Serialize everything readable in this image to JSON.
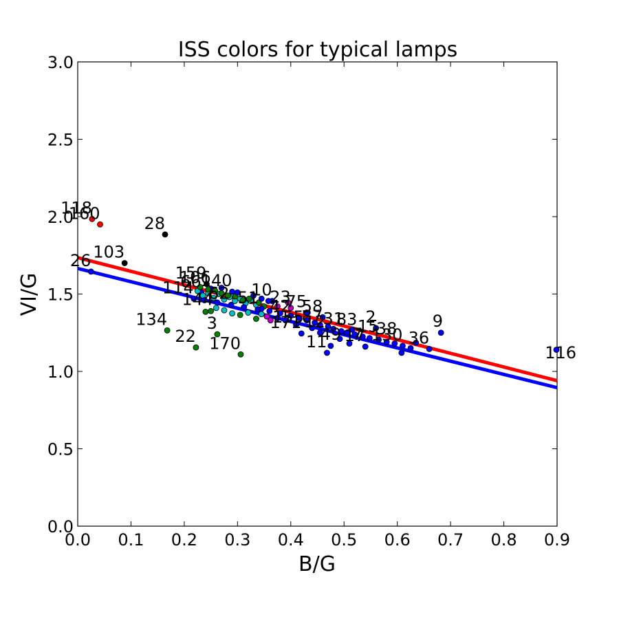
{
  "chart_data": {
    "type": "scatter",
    "title": "ISS colors for typical lamps",
    "xlabel": "B/G",
    "ylabel": "VI/G",
    "xlim": [
      0.0,
      0.9
    ],
    "ylim": [
      0.0,
      3.0
    ],
    "xticks": [
      "0.0",
      "0.1",
      "0.2",
      "0.3",
      "0.4",
      "0.5",
      "0.6",
      "0.7",
      "0.8",
      "0.9"
    ],
    "yticks": [
      "0.0",
      "0.5",
      "1.0",
      "1.5",
      "2.0",
      "2.5",
      "3.0"
    ],
    "grid": false,
    "colors": {
      "red": "#ff0000",
      "black": "#000000",
      "blue": "#0000ff",
      "green": "#007f00",
      "cyan": "#00bfbf",
      "magenta": "#bf00bf",
      "fit_red": "#ff0000",
      "fit_blue": "#0000ff"
    },
    "fit_lines": [
      {
        "color": "blue",
        "x": [
          0.0,
          0.9
        ],
        "y": [
          1.665,
          0.895
        ]
      },
      {
        "color": "red",
        "x": [
          0.0,
          0.9
        ],
        "y": [
          1.735,
          0.94
        ]
      }
    ],
    "points": [
      {
        "x": 0.027,
        "y": 1.985,
        "color": "red",
        "label": "118"
      },
      {
        "x": 0.042,
        "y": 1.95,
        "color": "red",
        "label": "160"
      },
      {
        "x": 0.164,
        "y": 1.885,
        "color": "black",
        "label": "28"
      },
      {
        "x": 0.088,
        "y": 1.7,
        "color": "black",
        "label": "103"
      },
      {
        "x": 0.025,
        "y": 1.645,
        "color": "blue",
        "label": "26"
      },
      {
        "x": 0.168,
        "y": 1.265,
        "color": "green",
        "label": "134"
      },
      {
        "x": 0.222,
        "y": 1.155,
        "color": "green",
        "label": "22"
      },
      {
        "x": 0.262,
        "y": 1.24,
        "color": "green",
        "label": "3"
      },
      {
        "x": 0.306,
        "y": 1.11,
        "color": "green",
        "label": "170"
      },
      {
        "x": 0.242,
        "y": 1.565,
        "color": "black",
        "label": "159"
      },
      {
        "x": 0.25,
        "y": 1.535,
        "color": "blue",
        "label": "106"
      },
      {
        "x": 0.232,
        "y": 1.51,
        "color": "blue",
        "label": "66"
      },
      {
        "x": 0.218,
        "y": 1.47,
        "color": "blue",
        "label": "114"
      },
      {
        "x": 0.29,
        "y": 1.515,
        "color": "blue",
        "label": "140"
      },
      {
        "x": 0.365,
        "y": 1.455,
        "color": "blue",
        "label": "10"
      },
      {
        "x": 0.4,
        "y": 1.41,
        "color": "magenta",
        "label": "23"
      },
      {
        "x": 0.43,
        "y": 1.38,
        "color": "blue",
        "label": "75"
      },
      {
        "x": 0.46,
        "y": 1.35,
        "color": "blue",
        "label": "58"
      },
      {
        "x": 0.42,
        "y": 1.245,
        "color": "blue",
        "label": "171"
      },
      {
        "x": 0.468,
        "y": 1.12,
        "color": "blue",
        "label": "11"
      },
      {
        "x": 0.54,
        "y": 1.16,
        "color": "blue",
        "label": "17"
      },
      {
        "x": 0.56,
        "y": 1.28,
        "color": "blue",
        "label": "2"
      },
      {
        "x": 0.61,
        "y": 1.165,
        "color": "blue",
        "label": "130"
      },
      {
        "x": 0.66,
        "y": 1.145,
        "color": "blue",
        "label": "36"
      },
      {
        "x": 0.682,
        "y": 1.25,
        "color": "blue",
        "label": "9"
      },
      {
        "x": 0.904,
        "y": 1.14,
        "color": "blue",
        "label": "116"
      },
      {
        "x": 0.24,
        "y": 1.385,
        "color": "green",
        "label": ""
      },
      {
        "x": 0.25,
        "y": 1.39,
        "color": "green",
        "label": ""
      },
      {
        "x": 0.26,
        "y": 1.41,
        "color": "cyan",
        "label": ""
      },
      {
        "x": 0.275,
        "y": 1.395,
        "color": "cyan",
        "label": ""
      },
      {
        "x": 0.29,
        "y": 1.375,
        "color": "cyan",
        "label": ""
      },
      {
        "x": 0.305,
        "y": 1.365,
        "color": "green",
        "label": ""
      },
      {
        "x": 0.32,
        "y": 1.38,
        "color": "cyan",
        "label": ""
      },
      {
        "x": 0.335,
        "y": 1.34,
        "color": "green",
        "label": ""
      },
      {
        "x": 0.345,
        "y": 1.37,
        "color": "cyan",
        "label": ""
      },
      {
        "x": 0.355,
        "y": 1.355,
        "color": "magenta",
        "label": ""
      },
      {
        "x": 0.362,
        "y": 1.33,
        "color": "magenta",
        "label": ""
      },
      {
        "x": 0.375,
        "y": 1.345,
        "color": "blue",
        "label": ""
      },
      {
        "x": 0.39,
        "y": 1.33,
        "color": "blue",
        "label": ""
      },
      {
        "x": 0.225,
        "y": 1.52,
        "color": "cyan",
        "label": ""
      },
      {
        "x": 0.235,
        "y": 1.49,
        "color": "cyan",
        "label": ""
      },
      {
        "x": 0.245,
        "y": 1.505,
        "color": "cyan",
        "label": ""
      },
      {
        "x": 0.255,
        "y": 1.475,
        "color": "cyan",
        "label": ""
      },
      {
        "x": 0.265,
        "y": 1.5,
        "color": "cyan",
        "label": ""
      },
      {
        "x": 0.275,
        "y": 1.465,
        "color": "cyan",
        "label": ""
      },
      {
        "x": 0.285,
        "y": 1.48,
        "color": "cyan",
        "label": ""
      },
      {
        "x": 0.295,
        "y": 1.455,
        "color": "cyan",
        "label": ""
      },
      {
        "x": 0.305,
        "y": 1.47,
        "color": "cyan",
        "label": ""
      },
      {
        "x": 0.315,
        "y": 1.44,
        "color": "cyan",
        "label": ""
      },
      {
        "x": 0.325,
        "y": 1.455,
        "color": "cyan",
        "label": ""
      },
      {
        "x": 0.335,
        "y": 1.43,
        "color": "cyan",
        "label": ""
      },
      {
        "x": 0.23,
        "y": 1.545,
        "color": "green",
        "label": ""
      },
      {
        "x": 0.245,
        "y": 1.53,
        "color": "green",
        "label": ""
      },
      {
        "x": 0.258,
        "y": 1.52,
        "color": "green",
        "label": ""
      },
      {
        "x": 0.27,
        "y": 1.505,
        "color": "green",
        "label": ""
      },
      {
        "x": 0.282,
        "y": 1.49,
        "color": "green",
        "label": ""
      },
      {
        "x": 0.296,
        "y": 1.485,
        "color": "green",
        "label": ""
      },
      {
        "x": 0.31,
        "y": 1.46,
        "color": "green",
        "label": ""
      },
      {
        "x": 0.322,
        "y": 1.47,
        "color": "green",
        "label": ""
      },
      {
        "x": 0.34,
        "y": 1.445,
        "color": "green",
        "label": ""
      },
      {
        "x": 0.35,
        "y": 1.42,
        "color": "green",
        "label": ""
      },
      {
        "x": 0.238,
        "y": 1.46,
        "color": "blue",
        "label": ""
      },
      {
        "x": 0.262,
        "y": 1.445,
        "color": "blue",
        "label": ""
      },
      {
        "x": 0.288,
        "y": 1.43,
        "color": "blue",
        "label": ""
      },
      {
        "x": 0.312,
        "y": 1.415,
        "color": "blue",
        "label": ""
      },
      {
        "x": 0.338,
        "y": 1.4,
        "color": "blue",
        "label": ""
      },
      {
        "x": 0.36,
        "y": 1.39,
        "color": "blue",
        "label": ""
      },
      {
        "x": 0.38,
        "y": 1.375,
        "color": "blue",
        "label": ""
      },
      {
        "x": 0.4,
        "y": 1.36,
        "color": "blue",
        "label": ""
      },
      {
        "x": 0.415,
        "y": 1.345,
        "color": "blue",
        "label": ""
      },
      {
        "x": 0.43,
        "y": 1.33,
        "color": "blue",
        "label": ""
      },
      {
        "x": 0.445,
        "y": 1.315,
        "color": "blue",
        "label": ""
      },
      {
        "x": 0.455,
        "y": 1.3,
        "color": "blue",
        "label": ""
      },
      {
        "x": 0.47,
        "y": 1.29,
        "color": "blue",
        "label": ""
      },
      {
        "x": 0.48,
        "y": 1.275,
        "color": "blue",
        "label": ""
      },
      {
        "x": 0.495,
        "y": 1.26,
        "color": "blue",
        "label": ""
      },
      {
        "x": 0.505,
        "y": 1.25,
        "color": "blue",
        "label": ""
      },
      {
        "x": 0.52,
        "y": 1.24,
        "color": "blue",
        "label": ""
      },
      {
        "x": 0.535,
        "y": 1.225,
        "color": "blue",
        "label": ""
      },
      {
        "x": 0.548,
        "y": 1.215,
        "color": "blue",
        "label": ""
      },
      {
        "x": 0.565,
        "y": 1.205,
        "color": "blue",
        "label": ""
      },
      {
        "x": 0.58,
        "y": 1.19,
        "color": "blue",
        "label": ""
      },
      {
        "x": 0.595,
        "y": 1.18,
        "color": "blue",
        "label": ""
      },
      {
        "x": 0.635,
        "y": 1.185,
        "color": "blue",
        "label": ""
      },
      {
        "x": 0.625,
        "y": 1.15,
        "color": "blue",
        "label": ""
      },
      {
        "x": 0.608,
        "y": 1.12,
        "color": "blue",
        "label": ""
      },
      {
        "x": 0.51,
        "y": 1.18,
        "color": "blue",
        "label": ""
      },
      {
        "x": 0.475,
        "y": 1.165,
        "color": "blue",
        "label": ""
      },
      {
        "x": 0.44,
        "y": 1.28,
        "color": "blue",
        "label": ""
      },
      {
        "x": 0.492,
        "y": 1.21,
        "color": "blue",
        "label": ""
      },
      {
        "x": 0.515,
        "y": 1.27,
        "color": "blue",
        "label": ""
      },
      {
        "x": 0.395,
        "y": 1.445,
        "color": "magenta",
        "label": ""
      },
      {
        "x": 0.375,
        "y": 1.42,
        "color": "magenta",
        "label": ""
      },
      {
        "x": 0.345,
        "y": 1.405,
        "color": "blue",
        "label": ""
      },
      {
        "x": 0.27,
        "y": 1.54,
        "color": "blue",
        "label": ""
      },
      {
        "x": 0.3,
        "y": 1.51,
        "color": "blue",
        "label": ""
      },
      {
        "x": 0.33,
        "y": 1.49,
        "color": "blue",
        "label": ""
      },
      {
        "x": 0.345,
        "y": 1.47,
        "color": "blue",
        "label": ""
      },
      {
        "x": 0.358,
        "y": 1.455,
        "color": "blue",
        "label": ""
      },
      {
        "x": 0.41,
        "y": 1.3,
        "color": "blue",
        "label": ""
      },
      {
        "x": 0.455,
        "y": 1.25,
        "color": "blue",
        "label": ""
      }
    ],
    "extra_labels": [
      {
        "x": 0.225,
        "y": 1.43,
        "text": "144"
      },
      {
        "x": 0.265,
        "y": 1.47,
        "text": "62"
      },
      {
        "x": 0.32,
        "y": 1.44,
        "text": "51"
      },
      {
        "x": 0.38,
        "y": 1.385,
        "text": "42"
      },
      {
        "x": 0.395,
        "y": 1.315,
        "text": "155"
      },
      {
        "x": 0.44,
        "y": 1.32,
        "text": "87"
      },
      {
        "x": 0.48,
        "y": 1.305,
        "text": "31"
      },
      {
        "x": 0.505,
        "y": 1.3,
        "text": "83"
      },
      {
        "x": 0.545,
        "y": 1.255,
        "text": "15"
      },
      {
        "x": 0.58,
        "y": 1.24,
        "text": "38"
      },
      {
        "x": 0.475,
        "y": 1.205,
        "text": "49"
      },
      {
        "x": 0.525,
        "y": 1.205,
        "text": "7"
      },
      {
        "x": 0.445,
        "y": 1.285,
        "text": "12"
      }
    ]
  }
}
